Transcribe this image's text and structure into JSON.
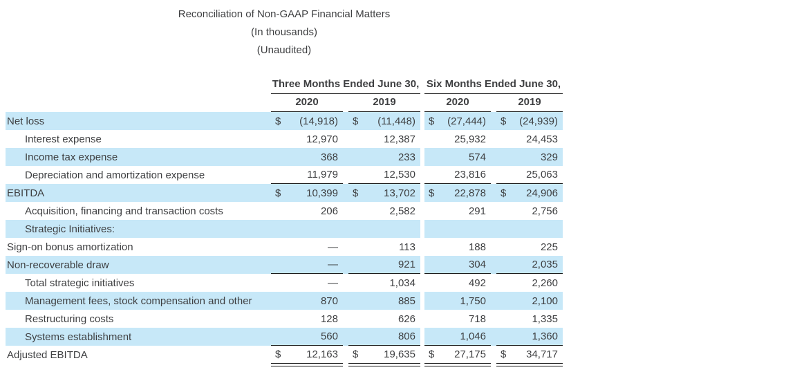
{
  "title": {
    "line1": "Reconciliation of Non-GAAP Financial Matters",
    "line2": "(In thousands)",
    "line3": "(Unaudited)"
  },
  "table": {
    "period_headers": [
      "Three Months Ended June 30,",
      "Six Months Ended June 30,"
    ],
    "year_headers": [
      "2020",
      "2019",
      "2020",
      "2019"
    ],
    "rows": [
      {
        "label": "Net loss",
        "currency": "$",
        "values": [
          "(14,918)",
          "(11,448)",
          "(27,444)",
          "(24,939)"
        ]
      },
      {
        "label": "Interest expense",
        "currency": "",
        "values": [
          "12,970",
          "12,387",
          "25,932",
          "24,453"
        ]
      },
      {
        "label": "Income tax expense",
        "currency": "",
        "values": [
          "368",
          "233",
          "574",
          "329"
        ]
      },
      {
        "label": "Depreciation and amortization expense",
        "currency": "",
        "values": [
          "11,979",
          "12,530",
          "23,816",
          "25,063"
        ]
      },
      {
        "label": "EBITDA",
        "currency": "$",
        "values": [
          "10,399",
          "13,702",
          "22,878",
          "24,906"
        ]
      },
      {
        "label": "Acquisition, financing and transaction costs",
        "currency": "",
        "values": [
          "206",
          "2,582",
          "291",
          "2,756"
        ]
      },
      {
        "label": "Strategic Initiatives:",
        "currency": "",
        "values": [
          "",
          "",
          "",
          ""
        ]
      },
      {
        "label": "Sign-on bonus amortization",
        "currency": "",
        "values": [
          "—",
          "113",
          "188",
          "225"
        ]
      },
      {
        "label": "Non-recoverable draw",
        "currency": "",
        "values": [
          "—",
          "921",
          "304",
          "2,035"
        ]
      },
      {
        "label": "Total strategic initiatives",
        "currency": "",
        "values": [
          "—",
          "1,034",
          "492",
          "2,260"
        ]
      },
      {
        "label": "Management fees, stock compensation and other",
        "currency": "",
        "values": [
          "870",
          "885",
          "1,750",
          "2,100"
        ]
      },
      {
        "label": "Restructuring costs",
        "currency": "",
        "values": [
          "128",
          "626",
          "718",
          "1,335"
        ]
      },
      {
        "label": "Systems establishment",
        "currency": "",
        "values": [
          "560",
          "806",
          "1,046",
          "1,360"
        ]
      },
      {
        "label": "Adjusted EBITDA",
        "currency": "$",
        "values": [
          "12,163",
          "19,635",
          "27,175",
          "34,717"
        ]
      }
    ]
  },
  "colors": {
    "row_highlight": "#c7e8f8",
    "text": "#3e3f41",
    "rule": "#1a1a1a"
  }
}
